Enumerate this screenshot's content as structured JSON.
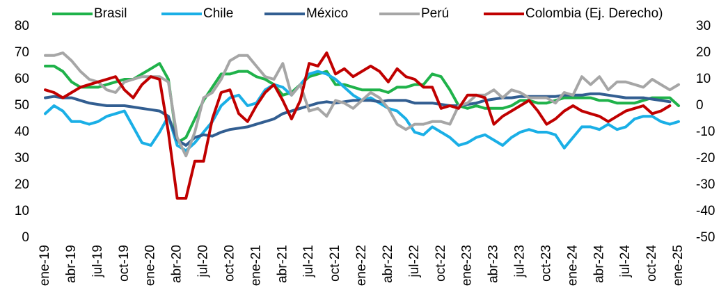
{
  "chart_data": {
    "type": "line",
    "categories": [
      "ene-19",
      null,
      null,
      "abr-19",
      null,
      null,
      "jul-19",
      null,
      null,
      "oct-19",
      null,
      null,
      "ene-20",
      null,
      null,
      "abr-20",
      null,
      null,
      "jul-20",
      null,
      null,
      "oct-20",
      null,
      null,
      "ene-21",
      null,
      null,
      "abr-21",
      null,
      null,
      "jul-21",
      null,
      null,
      "oct-21",
      null,
      null,
      "ene-22",
      null,
      null,
      "abr-22",
      null,
      null,
      "jul-22",
      null,
      null,
      "oct-22",
      null,
      null,
      "ene-23",
      null,
      null,
      "abr-23",
      null,
      null,
      "jul-23",
      null,
      null,
      "oct-23",
      null,
      null,
      "ene-24",
      null,
      null,
      "abr-24",
      null,
      null,
      "jul-24",
      null,
      null,
      "oct-24",
      null,
      null,
      "ene-25"
    ],
    "series": [
      {
        "name": "Brasil",
        "color": "#1fb24a",
        "values": [
          65,
          65,
          63,
          59,
          57,
          57,
          57,
          58,
          59,
          60,
          60,
          62,
          64,
          66,
          60,
          36,
          38,
          45,
          52,
          57,
          62,
          62,
          63,
          63,
          61,
          60,
          58,
          54,
          55,
          58,
          61,
          62,
          63,
          58,
          58,
          57,
          56,
          56,
          56,
          55,
          57,
          57,
          58,
          58,
          62,
          61,
          56,
          50,
          49,
          50,
          49,
          49,
          49,
          50,
          52,
          52,
          51,
          51,
          52,
          53,
          53,
          53,
          53,
          52,
          52,
          51,
          51,
          51,
          52,
          53,
          53,
          53,
          50
        ]
      },
      {
        "name": "Chile",
        "color": "#1aafe6",
        "values": [
          47,
          50,
          48,
          44,
          44,
          43,
          44,
          46,
          47,
          48,
          42,
          36,
          35,
          40,
          46,
          35,
          33,
          36,
          40,
          44,
          50,
          53,
          54,
          50,
          51,
          56,
          58,
          57,
          54,
          58,
          62,
          63,
          62,
          60,
          57,
          54,
          52,
          53,
          51,
          49,
          48,
          45,
          40,
          39,
          42,
          40,
          38,
          35,
          36,
          38,
          39,
          37,
          35,
          38,
          40,
          41,
          40,
          40,
          39,
          34,
          38,
          42,
          42,
          41,
          43,
          41,
          42,
          45,
          46,
          46,
          44,
          43,
          44
        ]
      },
      {
        "name": "México",
        "color": "#325e91",
        "values": [
          53,
          53.5,
          53,
          53,
          52,
          51,
          50.5,
          50,
          50,
          50,
          49.5,
          49,
          48.5,
          48,
          46,
          37,
          35,
          38,
          39,
          38.5,
          40,
          41,
          41.5,
          42,
          43,
          44,
          45,
          47,
          48,
          49,
          50,
          51,
          51.5,
          51,
          51.5,
          52,
          52,
          52,
          51.5,
          52,
          52,
          52,
          51,
          51,
          51,
          50.5,
          50,
          50,
          50.5,
          51,
          52,
          52.5,
          53,
          53,
          53.5,
          53.5,
          53.5,
          53.5,
          53.5,
          54,
          54,
          54,
          54.5,
          54.5,
          54,
          53.5,
          53,
          53,
          53,
          52.5,
          52,
          51.5,
          null
        ]
      },
      {
        "name": "Perú",
        "color": "#a6a6a6",
        "values": [
          69,
          69,
          70,
          67,
          63,
          60,
          59,
          56,
          55,
          59,
          60,
          61,
          61,
          61,
          59,
          38,
          31,
          40,
          53,
          55,
          60,
          67,
          69,
          69,
          65,
          61,
          60,
          66,
          54,
          58,
          48,
          49,
          46,
          52,
          51,
          49,
          52,
          55,
          53,
          49,
          43,
          41,
          43,
          43,
          44,
          44,
          43,
          50,
          51,
          54,
          54,
          56,
          53,
          56,
          55,
          53,
          53,
          53,
          51,
          55,
          54,
          61,
          58,
          61,
          56,
          59,
          59,
          58,
          57,
          60,
          58,
          56,
          58
        ]
      },
      {
        "name": "Colombia (Ej. Derecho)",
        "color": "#c00000",
        "axis": "y2",
        "values": [
          6,
          5,
          3,
          5,
          7,
          8,
          9,
          10,
          11,
          6,
          3,
          8,
          11,
          10,
          -10,
          -35,
          -35,
          -21,
          -21,
          -5,
          5,
          6,
          -3,
          -6,
          0,
          5,
          8,
          2,
          -5,
          2,
          16,
          15,
          20,
          12,
          14,
          11,
          13,
          15,
          13,
          9,
          14,
          11,
          10,
          7,
          7,
          -1,
          0,
          -1,
          4,
          4,
          3,
          -7,
          -4,
          -2,
          0,
          2,
          -2,
          -7,
          -5,
          -2,
          0,
          -2,
          -3,
          -4,
          -6,
          -4,
          -2,
          -1,
          0,
          -3,
          -2,
          0,
          null
        ]
      }
    ],
    "ylim": [
      0,
      80
    ],
    "yticks": [
      0,
      10,
      20,
      30,
      40,
      50,
      60,
      70,
      80
    ],
    "y2lim": [
      -50,
      30
    ],
    "y2ticks": [
      -50,
      -40,
      -30,
      -20,
      -10,
      0,
      10,
      20,
      30
    ],
    "legend": "top",
    "grid": false
  }
}
